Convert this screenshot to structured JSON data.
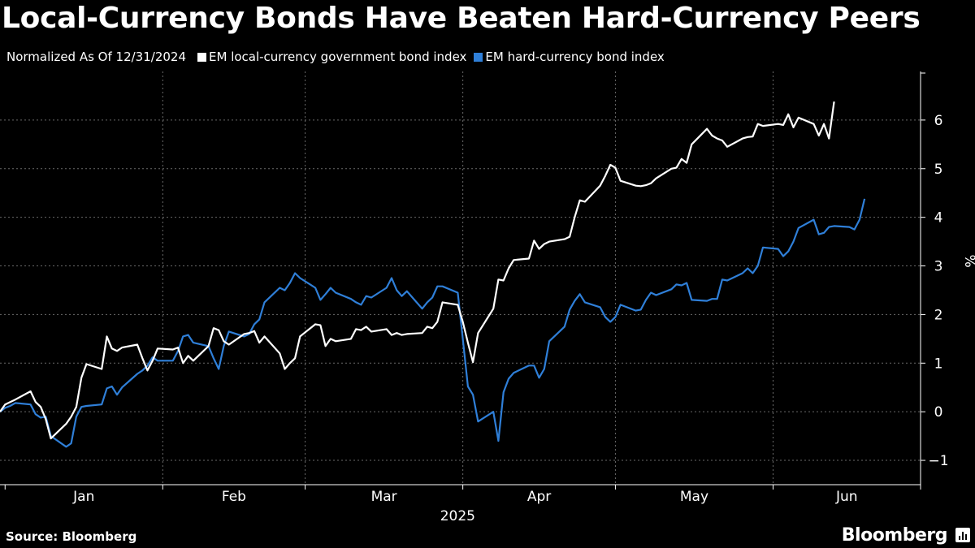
{
  "header": {
    "title": "Local-Currency Bonds Have Beaten Hard-Currency Peers"
  },
  "legend": {
    "prefix": "Normalized As Of 12/31/2024"
  },
  "footer": {
    "source": "Source: Bloomberg",
    "brand": "Bloomberg"
  },
  "colors": {
    "background": "#000000",
    "local": "#ffffff",
    "hard": "#2f7fd8",
    "grid": "#6a6a6a"
  },
  "chart_data": {
    "type": "line",
    "ylabel": "%",
    "ylim": [
      -1.5,
      7
    ],
    "yticks": [
      -1,
      0,
      1,
      2,
      3,
      4,
      5,
      6
    ],
    "grid": true,
    "legend_position": "top",
    "x_year_label": "2025",
    "months": [
      "Jan",
      "Feb",
      "Mar",
      "Apr",
      "May",
      "Jun"
    ],
    "series": [
      {
        "name": "EM local-currency government bond index",
        "color": "#ffffff",
        "points": [
          [
            "2024-12-31",
            0.0
          ],
          [
            "2025-01-01",
            0.15
          ],
          [
            "2025-01-02",
            0.2
          ],
          [
            "2025-01-03",
            0.25
          ],
          [
            "2025-01-06",
            0.42
          ],
          [
            "2025-01-07",
            0.2
          ],
          [
            "2025-01-08",
            0.1
          ],
          [
            "2025-01-09",
            -0.15
          ],
          [
            "2025-01-10",
            -0.55
          ],
          [
            "2025-01-13",
            -0.25
          ],
          [
            "2025-01-14",
            -0.1
          ],
          [
            "2025-01-15",
            0.1
          ],
          [
            "2025-01-16",
            0.7
          ],
          [
            "2025-01-17",
            0.98
          ],
          [
            "2025-01-20",
            0.88
          ],
          [
            "2025-01-21",
            1.55
          ],
          [
            "2025-01-22",
            1.3
          ],
          [
            "2025-01-23",
            1.25
          ],
          [
            "2025-01-24",
            1.32
          ],
          [
            "2025-01-27",
            1.38
          ],
          [
            "2025-01-28",
            1.1
          ],
          [
            "2025-01-29",
            0.85
          ],
          [
            "2025-01-30",
            1.05
          ],
          [
            "2025-01-31",
            1.3
          ],
          [
            "2025-02-03",
            1.28
          ],
          [
            "2025-02-04",
            1.32
          ],
          [
            "2025-02-05",
            1.0
          ],
          [
            "2025-02-06",
            1.15
          ],
          [
            "2025-02-07",
            1.05
          ],
          [
            "2025-02-10",
            1.35
          ],
          [
            "2025-02-11",
            1.72
          ],
          [
            "2025-02-12",
            1.68
          ],
          [
            "2025-02-13",
            1.45
          ],
          [
            "2025-02-14",
            1.38
          ],
          [
            "2025-02-17",
            1.6
          ],
          [
            "2025-02-18",
            1.62
          ],
          [
            "2025-02-19",
            1.66
          ],
          [
            "2025-02-20",
            1.42
          ],
          [
            "2025-02-21",
            1.55
          ],
          [
            "2025-02-24",
            1.2
          ],
          [
            "2025-02-25",
            0.88
          ],
          [
            "2025-02-26",
            1.0
          ],
          [
            "2025-02-27",
            1.1
          ],
          [
            "2025-02-28",
            1.55
          ],
          [
            "2025-03-03",
            1.8
          ],
          [
            "2025-03-04",
            1.78
          ],
          [
            "2025-03-05",
            1.35
          ],
          [
            "2025-03-06",
            1.5
          ],
          [
            "2025-03-07",
            1.45
          ],
          [
            "2025-03-10",
            1.5
          ],
          [
            "2025-03-11",
            1.7
          ],
          [
            "2025-03-12",
            1.68
          ],
          [
            "2025-03-13",
            1.75
          ],
          [
            "2025-03-14",
            1.65
          ],
          [
            "2025-03-17",
            1.7
          ],
          [
            "2025-03-18",
            1.58
          ],
          [
            "2025-03-19",
            1.62
          ],
          [
            "2025-03-20",
            1.58
          ],
          [
            "2025-03-21",
            1.6
          ],
          [
            "2025-03-24",
            1.62
          ],
          [
            "2025-03-25",
            1.75
          ],
          [
            "2025-03-26",
            1.72
          ],
          [
            "2025-03-27",
            1.85
          ],
          [
            "2025-03-28",
            2.25
          ],
          [
            "2025-03-31",
            2.2
          ],
          [
            "2025-04-01",
            1.85
          ],
          [
            "2025-04-02",
            1.42
          ],
          [
            "2025-04-03",
            1.02
          ],
          [
            "2025-04-04",
            1.62
          ],
          [
            "2025-04-07",
            2.12
          ],
          [
            "2025-04-08",
            2.72
          ],
          [
            "2025-04-09",
            2.7
          ],
          [
            "2025-04-10",
            2.95
          ],
          [
            "2025-04-11",
            3.12
          ],
          [
            "2025-04-14",
            3.15
          ],
          [
            "2025-04-15",
            3.52
          ],
          [
            "2025-04-16",
            3.35
          ],
          [
            "2025-04-17",
            3.45
          ],
          [
            "2025-04-18",
            3.5
          ],
          [
            "2025-04-21",
            3.55
          ],
          [
            "2025-04-22",
            3.6
          ],
          [
            "2025-04-23",
            4.0
          ],
          [
            "2025-04-24",
            4.35
          ],
          [
            "2025-04-25",
            4.32
          ],
          [
            "2025-04-28",
            4.65
          ],
          [
            "2025-04-29",
            4.85
          ],
          [
            "2025-04-30",
            5.08
          ],
          [
            "2025-05-01",
            5.02
          ],
          [
            "2025-05-02",
            4.75
          ],
          [
            "2025-05-05",
            4.65
          ],
          [
            "2025-05-06",
            4.64
          ],
          [
            "2025-05-07",
            4.66
          ],
          [
            "2025-05-08",
            4.7
          ],
          [
            "2025-05-09",
            4.8
          ],
          [
            "2025-05-12",
            5.0
          ],
          [
            "2025-05-13",
            5.02
          ],
          [
            "2025-05-14",
            5.2
          ],
          [
            "2025-05-15",
            5.12
          ],
          [
            "2025-05-16",
            5.5
          ],
          [
            "2025-05-19",
            5.82
          ],
          [
            "2025-05-20",
            5.68
          ],
          [
            "2025-05-21",
            5.62
          ],
          [
            "2025-05-22",
            5.58
          ],
          [
            "2025-05-23",
            5.45
          ],
          [
            "2025-05-26",
            5.62
          ],
          [
            "2025-05-27",
            5.65
          ],
          [
            "2025-05-28",
            5.66
          ],
          [
            "2025-05-29",
            5.92
          ],
          [
            "2025-05-30",
            5.88
          ],
          [
            "2025-06-02",
            5.92
          ],
          [
            "2025-06-03",
            5.9
          ],
          [
            "2025-06-04",
            6.12
          ],
          [
            "2025-06-05",
            5.85
          ],
          [
            "2025-06-06",
            6.05
          ],
          [
            "2025-06-09",
            5.92
          ],
          [
            "2025-06-10",
            5.68
          ],
          [
            "2025-06-11",
            5.92
          ],
          [
            "2025-06-12",
            5.62
          ],
          [
            "2025-06-13",
            6.38
          ]
        ]
      },
      {
        "name": "EM hard-currency bond index",
        "color": "#2f7fd8",
        "points": [
          [
            "2024-12-31",
            0.0
          ],
          [
            "2025-01-01",
            0.08
          ],
          [
            "2025-01-02",
            0.12
          ],
          [
            "2025-01-03",
            0.18
          ],
          [
            "2025-01-06",
            0.15
          ],
          [
            "2025-01-07",
            -0.05
          ],
          [
            "2025-01-08",
            -0.12
          ],
          [
            "2025-01-09",
            -0.1
          ],
          [
            "2025-01-10",
            -0.5
          ],
          [
            "2025-01-13",
            -0.72
          ],
          [
            "2025-01-14",
            -0.65
          ],
          [
            "2025-01-15",
            -0.1
          ],
          [
            "2025-01-16",
            0.1
          ],
          [
            "2025-01-17",
            0.12
          ],
          [
            "2025-01-20",
            0.15
          ],
          [
            "2025-01-21",
            0.48
          ],
          [
            "2025-01-22",
            0.52
          ],
          [
            "2025-01-23",
            0.35
          ],
          [
            "2025-01-24",
            0.5
          ],
          [
            "2025-01-27",
            0.78
          ],
          [
            "2025-01-28",
            0.85
          ],
          [
            "2025-01-29",
            0.95
          ],
          [
            "2025-01-30",
            1.12
          ],
          [
            "2025-01-31",
            1.05
          ],
          [
            "2025-02-03",
            1.05
          ],
          [
            "2025-02-04",
            1.25
          ],
          [
            "2025-02-05",
            1.55
          ],
          [
            "2025-02-06",
            1.58
          ],
          [
            "2025-02-07",
            1.42
          ],
          [
            "2025-02-10",
            1.35
          ],
          [
            "2025-02-11",
            1.1
          ],
          [
            "2025-02-12",
            0.88
          ],
          [
            "2025-02-13",
            1.35
          ],
          [
            "2025-02-14",
            1.65
          ],
          [
            "2025-02-17",
            1.55
          ],
          [
            "2025-02-18",
            1.6
          ],
          [
            "2025-02-19",
            1.8
          ],
          [
            "2025-02-20",
            1.9
          ],
          [
            "2025-02-21",
            2.25
          ],
          [
            "2025-02-24",
            2.55
          ],
          [
            "2025-02-25",
            2.5
          ],
          [
            "2025-02-26",
            2.65
          ],
          [
            "2025-02-27",
            2.85
          ],
          [
            "2025-02-28",
            2.75
          ],
          [
            "2025-03-03",
            2.55
          ],
          [
            "2025-03-04",
            2.3
          ],
          [
            "2025-03-05",
            2.42
          ],
          [
            "2025-03-06",
            2.55
          ],
          [
            "2025-03-07",
            2.45
          ],
          [
            "2025-03-10",
            2.32
          ],
          [
            "2025-03-11",
            2.25
          ],
          [
            "2025-03-12",
            2.2
          ],
          [
            "2025-03-13",
            2.38
          ],
          [
            "2025-03-14",
            2.35
          ],
          [
            "2025-03-17",
            2.55
          ],
          [
            "2025-03-18",
            2.75
          ],
          [
            "2025-03-19",
            2.5
          ],
          [
            "2025-03-20",
            2.38
          ],
          [
            "2025-03-21",
            2.48
          ],
          [
            "2025-03-24",
            2.12
          ],
          [
            "2025-03-25",
            2.25
          ],
          [
            "2025-03-26",
            2.35
          ],
          [
            "2025-03-27",
            2.58
          ],
          [
            "2025-03-28",
            2.58
          ],
          [
            "2025-03-31",
            2.45
          ],
          [
            "2025-04-01",
            1.5
          ],
          [
            "2025-04-02",
            0.52
          ],
          [
            "2025-04-03",
            0.35
          ],
          [
            "2025-04-04",
            -0.2
          ],
          [
            "2025-04-07",
            0.0
          ],
          [
            "2025-04-08",
            -0.6
          ],
          [
            "2025-04-09",
            0.4
          ],
          [
            "2025-04-10",
            0.68
          ],
          [
            "2025-04-11",
            0.8
          ],
          [
            "2025-04-14",
            0.95
          ],
          [
            "2025-04-15",
            0.95
          ],
          [
            "2025-04-16",
            0.7
          ],
          [
            "2025-04-17",
            0.88
          ],
          [
            "2025-04-18",
            1.45
          ],
          [
            "2025-04-21",
            1.75
          ],
          [
            "2025-04-22",
            2.1
          ],
          [
            "2025-04-23",
            2.28
          ],
          [
            "2025-04-24",
            2.42
          ],
          [
            "2025-04-25",
            2.25
          ],
          [
            "2025-04-28",
            2.15
          ],
          [
            "2025-04-29",
            1.95
          ],
          [
            "2025-04-30",
            1.85
          ],
          [
            "2025-05-01",
            1.95
          ],
          [
            "2025-05-02",
            2.2
          ],
          [
            "2025-05-05",
            2.08
          ],
          [
            "2025-05-06",
            2.1
          ],
          [
            "2025-05-07",
            2.3
          ],
          [
            "2025-05-08",
            2.45
          ],
          [
            "2025-05-09",
            2.4
          ],
          [
            "2025-05-12",
            2.52
          ],
          [
            "2025-05-13",
            2.62
          ],
          [
            "2025-05-14",
            2.6
          ],
          [
            "2025-05-15",
            2.65
          ],
          [
            "2025-05-16",
            2.3
          ],
          [
            "2025-05-19",
            2.28
          ],
          [
            "2025-05-20",
            2.32
          ],
          [
            "2025-05-21",
            2.32
          ],
          [
            "2025-05-22",
            2.72
          ],
          [
            "2025-05-23",
            2.7
          ],
          [
            "2025-05-26",
            2.85
          ],
          [
            "2025-05-27",
            2.95
          ],
          [
            "2025-05-28",
            2.85
          ],
          [
            "2025-05-29",
            3.0
          ],
          [
            "2025-05-30",
            3.38
          ],
          [
            "2025-06-02",
            3.35
          ],
          [
            "2025-06-03",
            3.2
          ],
          [
            "2025-06-04",
            3.3
          ],
          [
            "2025-06-05",
            3.5
          ],
          [
            "2025-06-06",
            3.78
          ],
          [
            "2025-06-09",
            3.95
          ],
          [
            "2025-06-10",
            3.65
          ],
          [
            "2025-06-11",
            3.68
          ],
          [
            "2025-06-12",
            3.8
          ],
          [
            "2025-06-13",
            3.82
          ],
          [
            "2025-06-16",
            3.8
          ],
          [
            "2025-06-17",
            3.75
          ],
          [
            "2025-06-18",
            3.95
          ],
          [
            "2025-06-19",
            4.38
          ]
        ]
      }
    ]
  }
}
